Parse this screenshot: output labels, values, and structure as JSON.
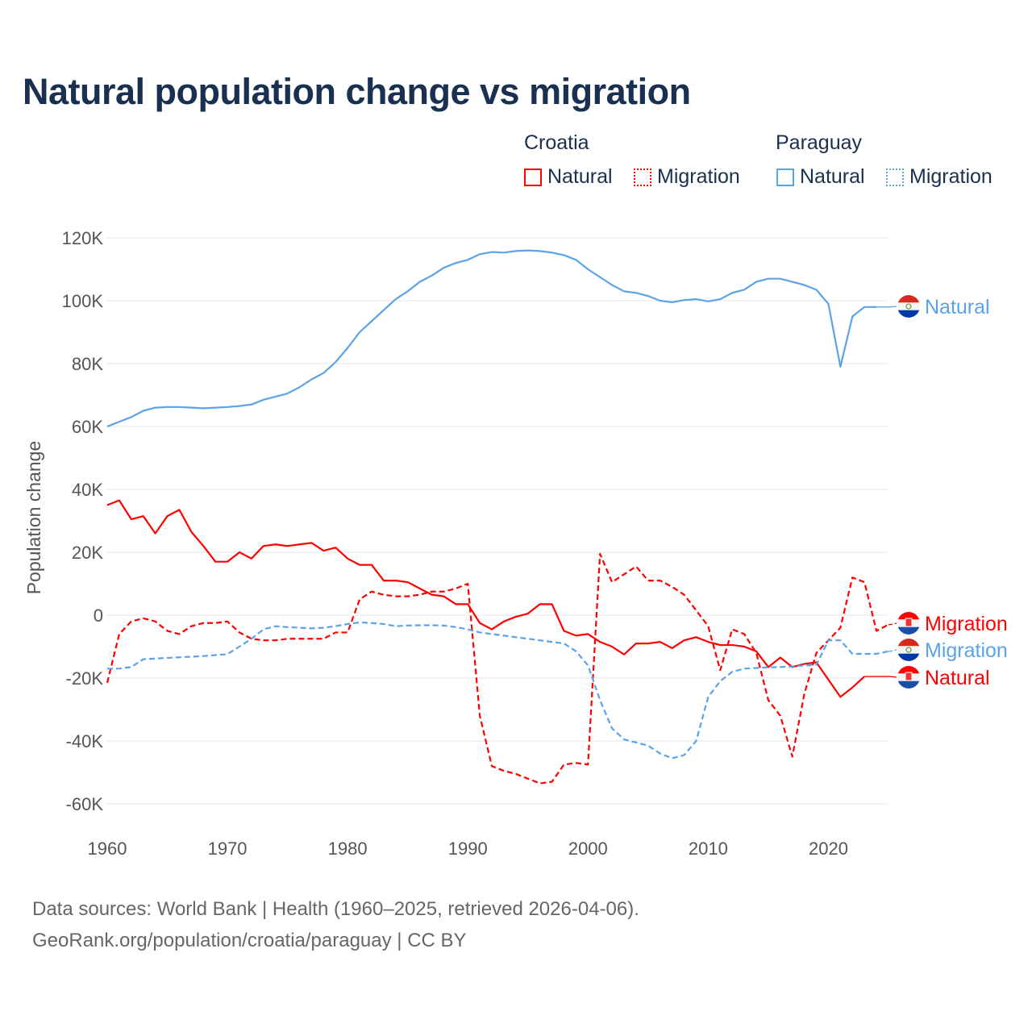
{
  "title": "Natural population change vs migration",
  "legend": {
    "groups": [
      {
        "country": "Croatia",
        "items": [
          "Natural",
          "Migration"
        ]
      },
      {
        "country": "Paraguay",
        "items": [
          "Natural",
          "Migration"
        ]
      }
    ]
  },
  "footer": {
    "line1": "Data sources: World Bank | Health (1960–2025, retrieved 2026-04-06).",
    "line2": "GeoRank.org/population/croatia/paraguay | CC BY"
  },
  "colors": {
    "croatia": "#ff0000",
    "paraguay": "#5ba3e8",
    "title": "#1a3050"
  },
  "chart_data": {
    "type": "line",
    "title": "Natural population change vs migration",
    "ylabel": "Population change",
    "xlabel": "",
    "xlim": [
      1960,
      2025
    ],
    "ylim": [
      -60000,
      120000
    ],
    "xticks": [
      1960,
      1970,
      1980,
      1990,
      2000,
      2010,
      2020
    ],
    "xtick_labels": [
      "1960",
      "1970",
      "1980",
      "1990",
      "2000",
      "2010",
      "2020"
    ],
    "yticks": [
      -60000,
      -40000,
      -20000,
      0,
      20000,
      40000,
      60000,
      80000,
      100000,
      120000
    ],
    "ytick_labels": [
      "-60K",
      "-40K",
      "-20K",
      "0",
      "20K",
      "40K",
      "60K",
      "80K",
      "100K",
      "120K"
    ],
    "grid": true,
    "legend_position": "top-right",
    "x_start": 1960,
    "series": [
      {
        "name": "Croatia Natural",
        "end_label": "Natural",
        "country": "croatia",
        "dash": false,
        "unit": "K",
        "values": [
          35,
          36.5,
          30.5,
          31.5,
          26,
          31.5,
          33.5,
          26.5,
          22,
          17,
          17,
          20,
          18,
          22,
          22.5,
          22,
          22.5,
          23,
          20.5,
          21.5,
          18,
          16,
          16,
          11,
          11,
          10.5,
          8.5,
          6.5,
          6,
          3.5,
          3.5,
          -2.5,
          -4.5,
          -2,
          -0.5,
          0.5,
          3.5,
          3.5,
          -5,
          -6.5,
          -6,
          -8.5,
          -10,
          -12.5,
          -9,
          -9,
          -8.5,
          -10.5,
          -8,
          -7,
          -8.5,
          -9.5,
          -9.5,
          -10,
          -11.5,
          -16.5,
          -13.5,
          -16.5,
          -15.5,
          -15,
          -20.5,
          -26,
          -23,
          -19.5
        ]
      },
      {
        "name": "Croatia Migration",
        "end_label": "Migration",
        "country": "croatia",
        "dash": true,
        "unit": "K",
        "values": [
          -21.5,
          -6,
          -2,
          -1,
          -2,
          -5,
          -6,
          -3.5,
          -2.5,
          -2.5,
          -2,
          -5.5,
          -7.5,
          -8,
          -8,
          -7.5,
          -7.5,
          -7.5,
          -7.5,
          -5.5,
          -5.5,
          5,
          7.5,
          6.5,
          6,
          6,
          6.5,
          7.5,
          7.5,
          8.5,
          10,
          -32,
          -48,
          -49.5,
          -50.5,
          -52,
          -53.5,
          -53,
          -47.5,
          -47,
          -47.5,
          19.5,
          10.5,
          13,
          15.5,
          11,
          11,
          9,
          6.5,
          1.5,
          -3.5,
          -17.5,
          -4.5,
          -6,
          -12,
          -27,
          -32,
          -45,
          -25,
          -12,
          -8,
          -4,
          12,
          10.5,
          -5,
          -3
        ]
      },
      {
        "name": "Paraguay Natural",
        "end_label": "Natural",
        "country": "paraguay",
        "dash": false,
        "unit": "K",
        "values": [
          60,
          61.5,
          63,
          65,
          66,
          66.2,
          66.2,
          66,
          65.8,
          66,
          66.2,
          66.5,
          67,
          68.5,
          69.5,
          70.5,
          72.5,
          75,
          77,
          80.5,
          85,
          90,
          93.5,
          97,
          100.5,
          103,
          106,
          108,
          110.5,
          112,
          113,
          114.8,
          115.5,
          115.3,
          115.8,
          116,
          115.8,
          115.3,
          114.5,
          113,
          110,
          107.5,
          105,
          103,
          102.5,
          101.5,
          100,
          99.5,
          100.2,
          100.5,
          99.8,
          100.5,
          102.5,
          103.5,
          106,
          107,
          107,
          106,
          105,
          103.5,
          99,
          79,
          95,
          98,
          98
        ]
      },
      {
        "name": "Paraguay Migration",
        "end_label": "Migration",
        "country": "paraguay",
        "dash": true,
        "unit": "K",
        "values": [
          -17,
          -17,
          -16.5,
          -14,
          -13.8,
          -13.6,
          -13.4,
          -13.2,
          -13,
          -12.7,
          -12.4,
          -10,
          -7.5,
          -4.5,
          -3.5,
          -3.8,
          -4,
          -4.2,
          -4,
          -3.5,
          -2.8,
          -2.3,
          -2.5,
          -2.8,
          -3.5,
          -3.3,
          -3.2,
          -3.2,
          -3.3,
          -3.8,
          -4.5,
          -5.5,
          -6,
          -6.5,
          -7,
          -7.5,
          -8,
          -8.5,
          -9,
          -11.5,
          -16,
          -27,
          -36,
          -39.5,
          -40.5,
          -41.5,
          -44,
          -45.5,
          -44.5,
          -40,
          -26,
          -21,
          -18,
          -17,
          -16.8,
          -16.6,
          -16.5,
          -16.3,
          -16,
          -15.8,
          -8,
          -8,
          -12.3,
          -12.3,
          -12.3,
          -11.5
        ]
      }
    ]
  }
}
